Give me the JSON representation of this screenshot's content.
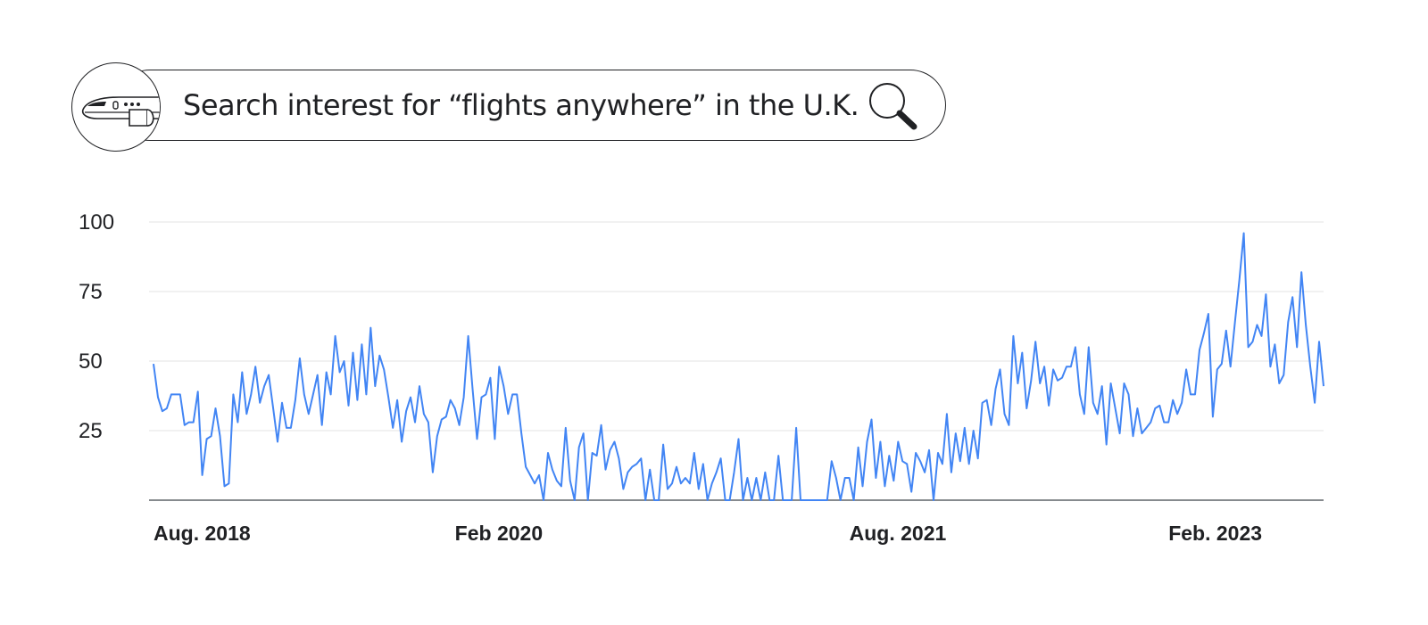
{
  "search": {
    "text": "Search interest for “flights anywhere” in the U.K.",
    "icon": "search-icon",
    "badge_icon": "airplane-icon"
  },
  "colors": {
    "line": "#4285f4",
    "grid": "#e3e3e3",
    "axis": "#5f6368",
    "text": "#202124"
  },
  "chart_data": {
    "type": "line",
    "title": "",
    "xlabel": "",
    "ylabel": "",
    "ylim": [
      0,
      100
    ],
    "yticks": [
      25,
      50,
      75,
      100
    ],
    "grid": true,
    "x_tick_labels": [
      {
        "label": "Aug. 2018",
        "index": 0
      },
      {
        "label": "Feb 2020",
        "index": 68
      },
      {
        "label": "Aug. 2021",
        "index": 157
      },
      {
        "label": "Feb. 2023",
        "index": 229
      }
    ],
    "series": [
      {
        "color": "#4285f4",
        "values": [
          49,
          37,
          32,
          33,
          38,
          38,
          38,
          27,
          28,
          28,
          39,
          9,
          22,
          23,
          33,
          23,
          5,
          6,
          38,
          28,
          46,
          31,
          38,
          48,
          35,
          41,
          45,
          33,
          21,
          35,
          26,
          26,
          36,
          51,
          38,
          31,
          38,
          45,
          27,
          46,
          38,
          59,
          46,
          50,
          34,
          53,
          36,
          56,
          38,
          62,
          41,
          52,
          47,
          37,
          26,
          36,
          21,
          32,
          37,
          28,
          41,
          31,
          28,
          10,
          23,
          29,
          30,
          36,
          33,
          27,
          37,
          59,
          40,
          22,
          37,
          38,
          44,
          22,
          48,
          41,
          31,
          38,
          38,
          24,
          12,
          9,
          6,
          9,
          0,
          17,
          11,
          7,
          5,
          26,
          7,
          0,
          19,
          24,
          0,
          17,
          16,
          27,
          11,
          18,
          21,
          15,
          4,
          10,
          12,
          13,
          15,
          0,
          11,
          0,
          0,
          20,
          4,
          6,
          12,
          6,
          8,
          6,
          17,
          4,
          13,
          0,
          6,
          10,
          15,
          0,
          0,
          10,
          22,
          0,
          8,
          0,
          8,
          0,
          10,
          0,
          0,
          16,
          0,
          0,
          0,
          26,
          0,
          0,
          0,
          0,
          0,
          0,
          0,
          14,
          8,
          0,
          8,
          8,
          0,
          19,
          5,
          21,
          29,
          8,
          21,
          5,
          16,
          7,
          21,
          14,
          13,
          3,
          17,
          14,
          10,
          18,
          0,
          17,
          13,
          31,
          10,
          24,
          14,
          26,
          13,
          25,
          15,
          35,
          36,
          27,
          40,
          47,
          31,
          27,
          59,
          42,
          53,
          33,
          43,
          57,
          42,
          48,
          34,
          47,
          43,
          44,
          48,
          48,
          55,
          38,
          31,
          55,
          35,
          31,
          41,
          20,
          42,
          33,
          24,
          42,
          38,
          23,
          33,
          24,
          26,
          28,
          33,
          34,
          28,
          28,
          36,
          31,
          35,
          47,
          38,
          38,
          54,
          60,
          67,
          30,
          47,
          49,
          61,
          48,
          64,
          79,
          96,
          55,
          57,
          63,
          59,
          74,
          48,
          56,
          42,
          45,
          64,
          73,
          55,
          82,
          63,
          48,
          35,
          57,
          41
        ]
      }
    ]
  }
}
